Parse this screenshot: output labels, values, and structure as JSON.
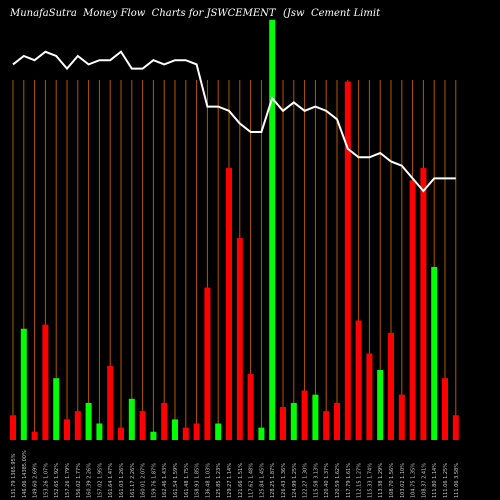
{
  "chart_data": {
    "type": "bar",
    "title": "MunafaSutra  Money Flow  Charts for JSWCEMENT",
    "subtitle": "(Jsw  Cement Limit",
    "colors": {
      "up": "#00ff00",
      "down": "#ff0000",
      "line": "#ffffff",
      "grid": "#b35900",
      "background": "#000000",
      "label": "#cccccc"
    },
    "bar_scale_max": 100,
    "line_scale_max": 100,
    "categories": [
      "131.79  1365.95%",
      "146.06  14385.00%",
      "149.60  2.69%",
      "153.26  1.07%",
      "152.65  1.92%",
      "157.26  1.79%",
      "156.02  1.77%",
      "160.39  2.26%",
      "157.02  1.95%",
      "161.64  1.47%",
      "161.03  1.26%",
      "161.17  2.26%",
      "160.01  2.07%",
      "159.76  1.87%",
      "162.46  1.43%",
      "161.54  1.59%",
      "161.48  1.75%",
      "158.93  1.85%",
      "136.48  1.03%",
      "125.85  1.23%",
      "129.27  1.14%",
      "121.66  1.51%",
      "117.62  1.48%",
      "125.84  1.45%",
      "128.25  1.87%",
      "126.43  1.36%",
      "124.99  1.25%",
      "122.27  1.30%",
      "115.58  3.13%",
      "120.40  1.37%",
      "120.59  1.62%",
      "117.79  1.61%",
      "112.15  1.27%",
      "115.33  1.74%",
      "113.38  1.29%",
      "108.70  1.56%",
      "103.02  1.10%",
      "104.75  1.35%",
      "108.37  2.41%",
      "111.80  1.14%",
      "111.06  1.25%",
      "111.06  3.58%"
    ],
    "series": [
      {
        "kind": "bars",
        "values": [
          6,
          27,
          2,
          28,
          15,
          5,
          7,
          9,
          4,
          18,
          3,
          10,
          7,
          2,
          9,
          5,
          3,
          4,
          37,
          4,
          66,
          49,
          16,
          3,
          102,
          8,
          9,
          12,
          11,
          7,
          9,
          87,
          29,
          21,
          17,
          26,
          11,
          63,
          66,
          42,
          15,
          6
        ],
        "directions": [
          "down",
          "up",
          "down",
          "down",
          "up",
          "down",
          "down",
          "up",
          "up",
          "down",
          "down",
          "up",
          "down",
          "up",
          "down",
          "up",
          "down",
          "down",
          "down",
          "up",
          "down",
          "down",
          "down",
          "up",
          "up",
          "down",
          "up",
          "down",
          "up",
          "down",
          "down",
          "down",
          "down",
          "down",
          "up",
          "down",
          "down",
          "down",
          "down",
          "up",
          "down",
          "down"
        ]
      },
      {
        "kind": "line",
        "values": [
          89,
          91,
          90,
          92,
          91,
          88,
          91,
          89,
          90,
          90,
          92,
          88,
          88,
          90,
          89,
          90,
          90,
          89,
          79,
          79,
          78,
          75,
          73,
          73,
          81,
          78,
          80,
          78,
          79,
          78,
          76,
          69,
          67,
          67,
          68,
          66,
          65,
          62,
          59,
          62,
          62,
          62
        ]
      }
    ]
  }
}
